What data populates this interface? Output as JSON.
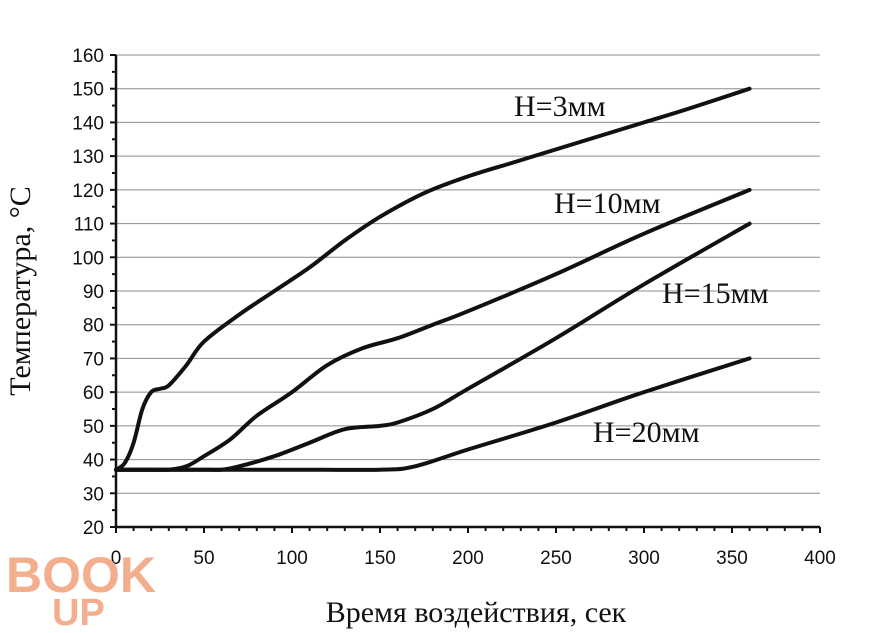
{
  "chart_data": {
    "type": "line",
    "xlabel": "Время воздействия, сек",
    "ylabel": "Температура, °С",
    "xlim": [
      0,
      400
    ],
    "ylim": [
      20,
      160
    ],
    "xticks": [
      0,
      50,
      100,
      150,
      200,
      250,
      300,
      350,
      400
    ],
    "yticks": [
      20,
      30,
      40,
      50,
      60,
      70,
      80,
      90,
      100,
      110,
      120,
      130,
      140,
      150,
      160
    ],
    "grid": "horizontal",
    "series": [
      {
        "name": "H=3мм",
        "x": [
          0,
          5,
          10,
          15,
          20,
          25,
          30,
          40,
          50,
          70,
          90,
          110,
          130,
          150,
          175,
          200,
          225,
          250,
          275,
          300,
          325,
          360
        ],
        "y": [
          37,
          39,
          45,
          55,
          60,
          61,
          62,
          68,
          75,
          83,
          90,
          97,
          105,
          112,
          119,
          124,
          128,
          132,
          136,
          140,
          144,
          150
        ]
      },
      {
        "name": "H=10мм",
        "x": [
          0,
          20,
          30,
          40,
          50,
          65,
          80,
          100,
          120,
          140,
          160,
          180,
          200,
          250,
          300,
          360
        ],
        "y": [
          37,
          37,
          37,
          38,
          41,
          46,
          53,
          60,
          68,
          73,
          76,
          80,
          84,
          95,
          107,
          120
        ]
      },
      {
        "name": "H=15мм",
        "x": [
          0,
          20,
          30,
          40,
          50,
          60,
          70,
          90,
          110,
          130,
          150,
          160,
          180,
          200,
          250,
          300,
          360
        ],
        "y": [
          37,
          37,
          37,
          37,
          37,
          37,
          38,
          41,
          45,
          49,
          50,
          51,
          55,
          61,
          76,
          92,
          110
        ]
      },
      {
        "name": "H=20мм",
        "x": [
          0,
          50,
          100,
          150,
          170,
          200,
          250,
          300,
          360
        ],
        "y": [
          37,
          37,
          37,
          37,
          38,
          43,
          51,
          60,
          70
        ]
      }
    ]
  },
  "watermark": {
    "line1": "BOOK",
    "line2": "UP",
    "color": "#f2a07a"
  }
}
